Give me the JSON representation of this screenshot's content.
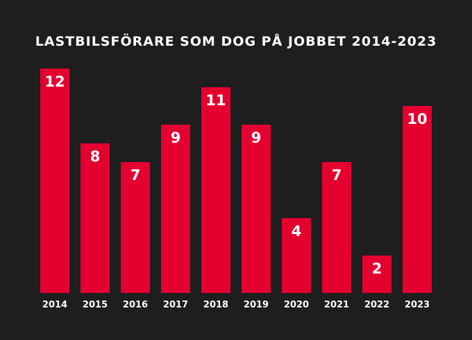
{
  "chart_data": {
    "type": "bar",
    "title": "LASTBILSFÖRARE SOM DOG PÅ JOBBET 2014-2023",
    "categories": [
      "2014",
      "2015",
      "2016",
      "2017",
      "2018",
      "2019",
      "2020",
      "2021",
      "2022",
      "2023"
    ],
    "values": [
      12,
      8,
      7,
      9,
      11,
      9,
      4,
      7,
      2,
      10
    ],
    "xlabel": "",
    "ylabel": "",
    "ylim": [
      0,
      12
    ],
    "grid": false,
    "colors": {
      "bar": "#e4002f",
      "background": "#1e1e1e",
      "text": "#ffffff"
    }
  }
}
